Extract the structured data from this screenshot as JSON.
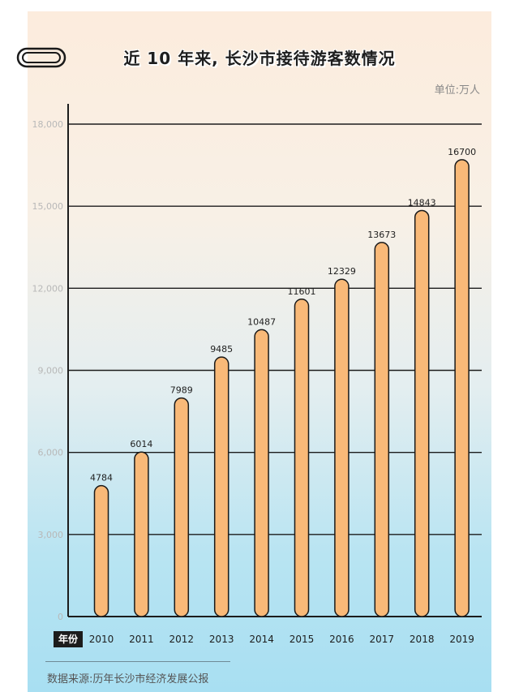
{
  "title": "近 10 年来, 长沙市接待游客数情况",
  "unit": "单位:万人",
  "year_tag": "年份",
  "source": "数据来源:历年长沙市经济发展公报",
  "icons": {
    "clip": "paperclip-icon"
  },
  "colors": {
    "bar": "#f9b978",
    "bar_stroke": "#1a1a1a",
    "grid": "#1c1c1c",
    "tick": "#b8b8b8"
  },
  "chart_data": {
    "type": "bar",
    "title": "近 10 年来, 长沙市接待游客数情况",
    "ylabel": "单位:万人",
    "xlabel": "年份",
    "categories": [
      "2010",
      "2011",
      "2012",
      "2013",
      "2014",
      "2015",
      "2016",
      "2017",
      "2018",
      "2019"
    ],
    "values": [
      4784,
      6014,
      7989,
      9485,
      10487,
      11601,
      12329,
      13673,
      14843,
      16700
    ],
    "data_labels": [
      "4784",
      "6014",
      "7989",
      "9485",
      "10487",
      "11601",
      "12329",
      "13673",
      "14843",
      "16700"
    ],
    "yticks": [
      0,
      3000,
      6000,
      9000,
      12000,
      15000,
      18000
    ],
    "ytick_labels": [
      "0",
      "3,000",
      "6,000",
      "9,000",
      "12,000",
      "15,000",
      "18,000"
    ],
    "ylim": [
      0,
      18000
    ],
    "grid": true
  }
}
